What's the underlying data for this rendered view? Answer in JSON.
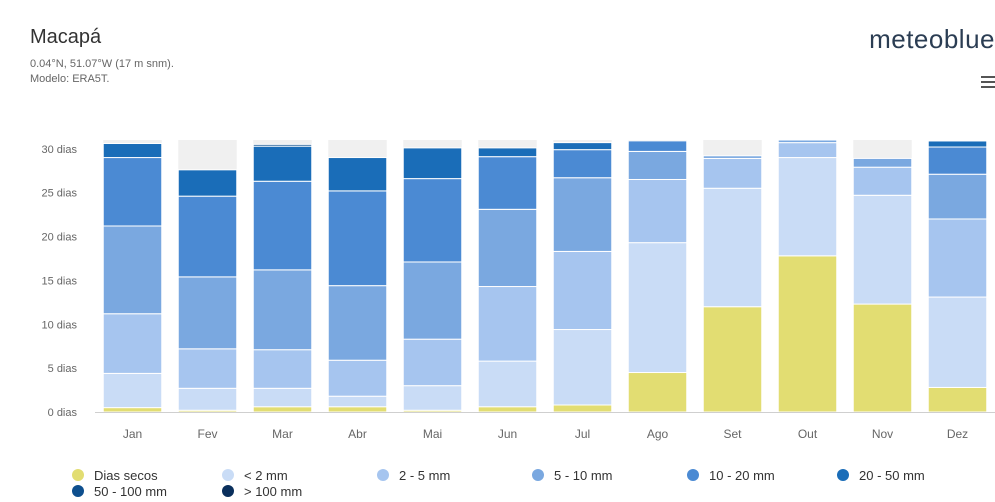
{
  "header": {
    "location": "Macapá",
    "coords": "0.04°N, 51.07°W (17 m snm).",
    "model": "Modelo: ERA5T.",
    "brand": "meteoblue"
  },
  "colors": {
    "Dias secos": "#e2dd72",
    "< 2 mm": "#c9dcf6",
    "2 - 5 mm": "#a6c5ef",
    "5 - 10 mm": "#7aa8e0",
    "10 - 20 mm": "#4b8ad3",
    "20 - 50 mm": "#1a6db8",
    "50 - 100 mm": "#0e4f8e",
    "> 100 mm": "#0a2f5c"
  },
  "chart_data": {
    "type": "bar",
    "stacked": true,
    "categories": [
      "Jan",
      "Fev",
      "Mar",
      "Abr",
      "Mai",
      "Jun",
      "Jul",
      "Ago",
      "Set",
      "Out",
      "Nov",
      "Dez"
    ],
    "ytick_labels": [
      "0 dias",
      "5 dias",
      "10 dias",
      "15 dias",
      "20 dias",
      "25 dias",
      "30 dias"
    ],
    "ylim": [
      0,
      31
    ],
    "grid": false,
    "legend_position": "bottom",
    "series": [
      {
        "name": "Dias secos",
        "values": [
          0.5,
          0.2,
          0.6,
          0.6,
          0.2,
          0.6,
          0.8,
          4.5,
          12.0,
          17.8,
          12.3,
          2.8
        ]
      },
      {
        "name": "< 2 mm",
        "values": [
          3.9,
          2.5,
          2.1,
          1.2,
          2.8,
          5.2,
          8.6,
          14.8,
          13.5,
          11.2,
          12.4,
          10.3
        ]
      },
      {
        "name": "2 - 5 mm",
        "values": [
          6.8,
          4.5,
          4.4,
          4.1,
          5.3,
          8.5,
          8.9,
          7.2,
          3.4,
          1.7,
          3.2,
          8.9
        ]
      },
      {
        "name": "5 - 10 mm",
        "values": [
          10.0,
          8.2,
          9.1,
          8.5,
          8.8,
          8.8,
          8.4,
          3.2,
          0.3,
          0.3,
          1.0,
          5.1
        ]
      },
      {
        "name": "10 - 20 mm",
        "values": [
          7.8,
          9.2,
          10.1,
          10.8,
          9.5,
          6.0,
          3.2,
          1.2,
          0,
          0,
          0,
          3.1
        ]
      },
      {
        "name": "20 - 50 mm",
        "values": [
          1.6,
          3.0,
          4.0,
          3.8,
          3.5,
          1.0,
          0.8,
          0,
          0,
          0,
          0,
          0.7
        ]
      },
      {
        "name": "50 - 100 mm",
        "values": [
          0,
          0,
          0.2,
          0,
          0,
          0,
          0,
          0,
          0,
          0,
          0,
          0.1
        ]
      },
      {
        "name": "> 100 mm",
        "values": [
          0,
          0,
          0,
          0,
          0,
          0,
          0,
          0,
          0,
          0,
          0,
          0
        ]
      }
    ]
  }
}
